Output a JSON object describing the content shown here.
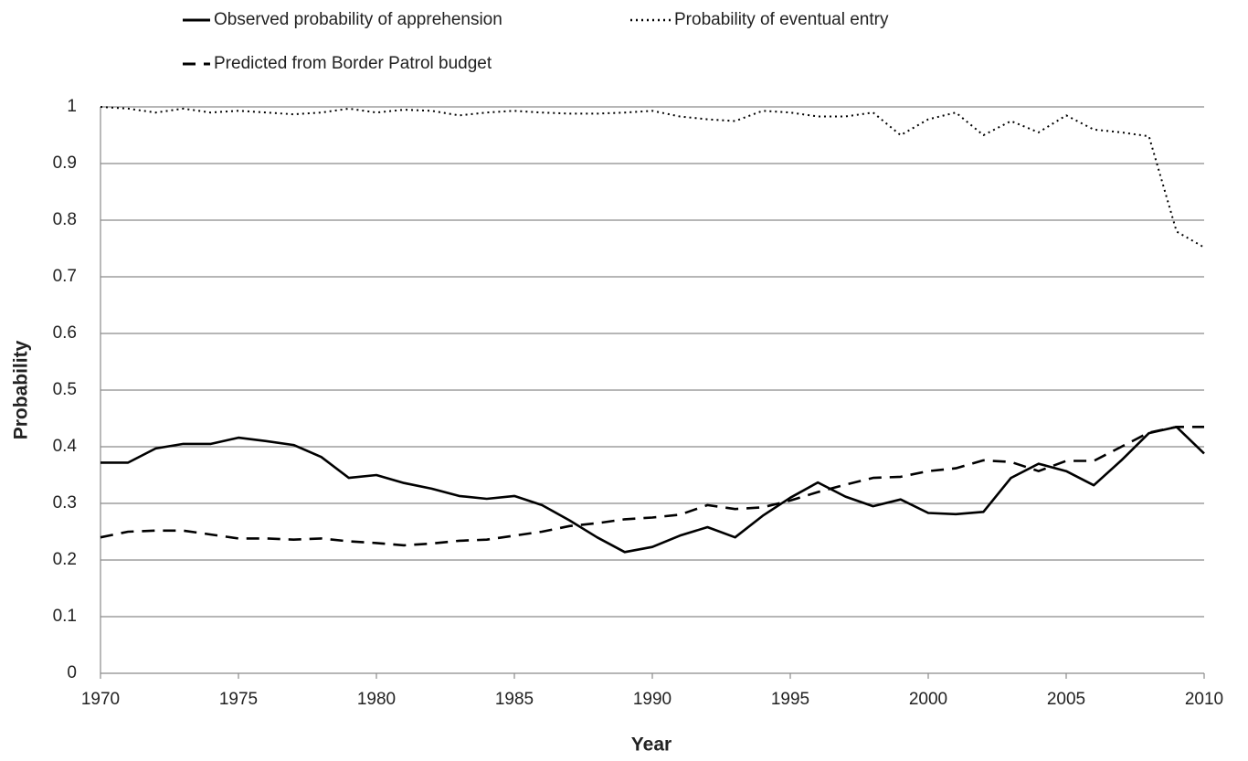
{
  "chart_data": {
    "type": "line",
    "xlabel": "Year",
    "ylabel": "Probability",
    "x": [
      1970,
      1971,
      1972,
      1973,
      1974,
      1975,
      1976,
      1977,
      1978,
      1979,
      1980,
      1981,
      1982,
      1983,
      1984,
      1985,
      1986,
      1987,
      1988,
      1989,
      1990,
      1991,
      1992,
      1993,
      1994,
      1995,
      1996,
      1997,
      1998,
      1999,
      2000,
      2001,
      2002,
      2003,
      2004,
      2005,
      2006,
      2007,
      2008,
      2009,
      2010
    ],
    "series": [
      {
        "name": "Observed probability of apprehension",
        "color": "#000000",
        "style": "solid",
        "values": [
          0.372,
          0.372,
          0.397,
          0.405,
          0.405,
          0.416,
          0.41,
          0.403,
          0.382,
          0.345,
          0.35,
          0.336,
          0.326,
          0.313,
          0.308,
          0.313,
          0.297,
          0.27,
          0.24,
          0.214,
          0.223,
          0.243,
          0.258,
          0.24,
          0.278,
          0.31,
          0.337,
          0.312,
          0.295,
          0.307,
          0.283,
          0.281,
          0.285,
          0.345,
          0.37,
          0.357,
          0.332,
          0.376,
          0.424,
          0.435,
          0.388
        ]
      },
      {
        "name": "Probability of eventual entry",
        "color": "#000000",
        "style": "dotted",
        "values": [
          1.0,
          0.997,
          0.99,
          0.997,
          0.99,
          0.993,
          0.99,
          0.987,
          0.99,
          0.997,
          0.99,
          0.995,
          0.993,
          0.985,
          0.99,
          0.993,
          0.99,
          0.988,
          0.988,
          0.99,
          0.993,
          0.983,
          0.978,
          0.975,
          0.993,
          0.99,
          0.983,
          0.983,
          0.99,
          0.95,
          0.978,
          0.99,
          0.95,
          0.975,
          0.955,
          0.985,
          0.96,
          0.955,
          0.948,
          0.78,
          0.752
        ]
      },
      {
        "name": "Predicted from Border Patrol budget",
        "color": "#000000",
        "style": "dashed",
        "values": [
          0.24,
          0.25,
          0.252,
          0.252,
          0.245,
          0.238,
          0.238,
          0.236,
          0.238,
          0.233,
          0.23,
          0.226,
          0.229,
          0.234,
          0.236,
          0.243,
          0.25,
          0.26,
          0.265,
          0.272,
          0.275,
          0.28,
          0.297,
          0.29,
          0.293,
          0.305,
          0.32,
          0.333,
          0.345,
          0.347,
          0.357,
          0.362,
          0.376,
          0.373,
          0.357,
          0.375,
          0.375,
          0.4,
          0.425,
          0.435,
          0.435
        ]
      }
    ],
    "xlim": [
      1970,
      2010
    ],
    "xticks": [
      1970,
      1975,
      1980,
      1985,
      1990,
      1995,
      2000,
      2005,
      2010
    ],
    "ylim": [
      0,
      1
    ],
    "yticks": [
      0,
      0.1,
      0.2,
      0.3,
      0.4,
      0.5,
      0.6,
      0.7,
      0.8,
      0.9,
      1
    ],
    "grid": true
  }
}
